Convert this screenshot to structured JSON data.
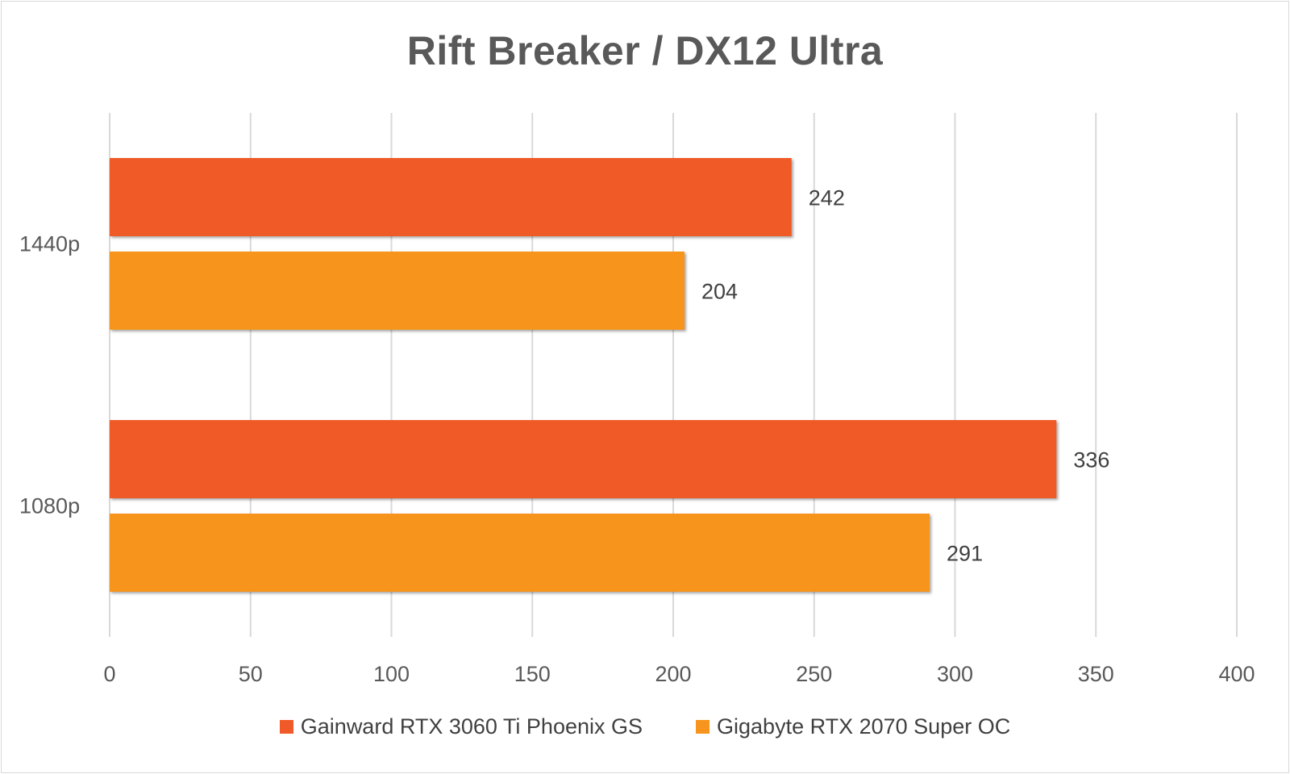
{
  "chart_data": {
    "type": "bar",
    "orientation": "horizontal",
    "title": "Rift Breaker / DX12 Ultra",
    "xlabel": "",
    "ylabel": "",
    "categories": [
      "1440p",
      "1080p"
    ],
    "series": [
      {
        "name": "Gainward RTX 3060 Ti Phoenix GS",
        "values": [
          242,
          336
        ],
        "color": "#f05a28"
      },
      {
        "name": "Gigabyte RTX 2070 Super OC",
        "values": [
          204,
          291
        ],
        "color": "#f7941d"
      }
    ],
    "xlim": [
      0,
      400
    ],
    "xticks": [
      0,
      50,
      100,
      150,
      200,
      250,
      300,
      350,
      400
    ],
    "grid": "vertical",
    "data_labels": true,
    "legend_position": "bottom"
  }
}
